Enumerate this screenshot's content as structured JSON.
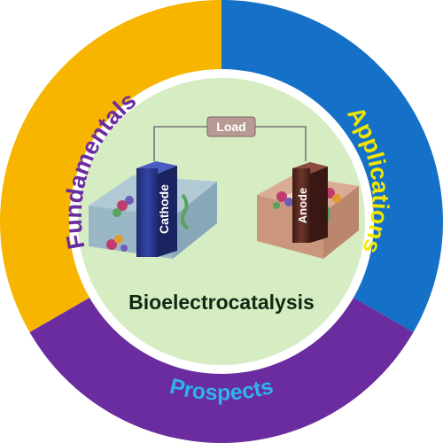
{
  "segments": {
    "fundamentals": {
      "label": "Fundamentals",
      "color": "#F7B500",
      "text_color": "#6A2C9E"
    },
    "applications": {
      "label": "Applications",
      "color": "#1570C8",
      "text_color": "#F2E600"
    },
    "prospects": {
      "label": "Prospects",
      "color": "#6A2C9E",
      "text_color": "#2FB3EC"
    }
  },
  "center": {
    "title": "Bioelectrocatalysis",
    "background": "#D6ECC3"
  },
  "circuit": {
    "load_label": "Load"
  },
  "electrodes": {
    "cathode": {
      "label": "Cathode",
      "color": "#2C3A8F",
      "platform_color": "#A9C3D8"
    },
    "anode": {
      "label": "Anode",
      "color": "#5A2A22",
      "platform_color": "#D9A68E"
    }
  }
}
